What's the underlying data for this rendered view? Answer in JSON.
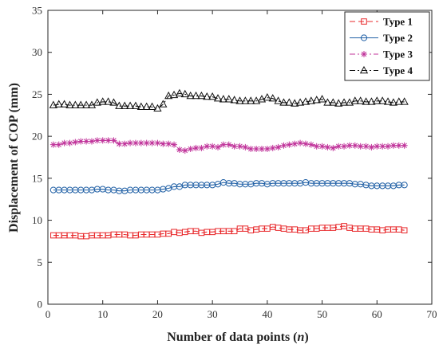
{
  "chart_data": {
    "type": "line",
    "title": "",
    "xlabel": "Number of data points (",
    "xlabel_var": "n",
    "xlabel_suffix": ")",
    "ylabel": "Displacement of COP (mm)",
    "xlim": [
      0,
      70
    ],
    "ylim": [
      0,
      35
    ],
    "xticks": [
      0,
      10,
      20,
      30,
      40,
      50,
      60,
      70
    ],
    "yticks": [
      0,
      5,
      10,
      15,
      20,
      25,
      30,
      35
    ],
    "grid": false,
    "legend_position": "top-right",
    "x": [
      1,
      2,
      3,
      4,
      5,
      6,
      7,
      8,
      9,
      10,
      11,
      12,
      13,
      14,
      15,
      16,
      17,
      18,
      19,
      20,
      21,
      22,
      23,
      24,
      25,
      26,
      27,
      28,
      29,
      30,
      31,
      32,
      33,
      34,
      35,
      36,
      37,
      38,
      39,
      40,
      41,
      42,
      43,
      44,
      45,
      46,
      47,
      48,
      49,
      50,
      51,
      52,
      53,
      54,
      55,
      56,
      57,
      58,
      59,
      60,
      61,
      62,
      63,
      64,
      65
    ],
    "series": [
      {
        "name": "Type 1",
        "color": "#e8282b",
        "dash": "7,4",
        "marker": "square",
        "values": [
          8.2,
          8.2,
          8.2,
          8.2,
          8.2,
          8.1,
          8.1,
          8.2,
          8.2,
          8.2,
          8.2,
          8.3,
          8.3,
          8.3,
          8.2,
          8.2,
          8.3,
          8.3,
          8.3,
          8.3,
          8.4,
          8.4,
          8.6,
          8.5,
          8.6,
          8.7,
          8.7,
          8.5,
          8.6,
          8.6,
          8.7,
          8.7,
          8.7,
          8.7,
          9.0,
          9.0,
          8.8,
          8.9,
          9.0,
          9.0,
          9.2,
          9.1,
          9.0,
          8.9,
          8.9,
          8.8,
          8.8,
          9.0,
          9.0,
          9.1,
          9.1,
          9.1,
          9.2,
          9.3,
          9.1,
          9.0,
          9.0,
          9.0,
          8.9,
          8.9,
          8.8,
          8.9,
          8.9,
          8.9,
          8.8
        ]
      },
      {
        "name": "Type 2",
        "color": "#1f5fa5",
        "dash": "",
        "marker": "circle",
        "values": [
          13.6,
          13.6,
          13.6,
          13.6,
          13.6,
          13.6,
          13.6,
          13.6,
          13.7,
          13.7,
          13.6,
          13.6,
          13.5,
          13.5,
          13.6,
          13.6,
          13.6,
          13.6,
          13.6,
          13.6,
          13.7,
          13.8,
          14.0,
          14.0,
          14.2,
          14.2,
          14.2,
          14.2,
          14.2,
          14.2,
          14.3,
          14.5,
          14.4,
          14.4,
          14.3,
          14.3,
          14.3,
          14.4,
          14.4,
          14.3,
          14.4,
          14.4,
          14.4,
          14.4,
          14.4,
          14.4,
          14.5,
          14.4,
          14.4,
          14.4,
          14.4,
          14.4,
          14.4,
          14.4,
          14.4,
          14.3,
          14.3,
          14.2,
          14.1,
          14.1,
          14.1,
          14.1,
          14.1,
          14.2,
          14.2
        ]
      },
      {
        "name": "Type 3",
        "color": "#c0339a",
        "dash": "7,3,2,3",
        "marker": "star",
        "values": [
          19.0,
          19.0,
          19.2,
          19.2,
          19.3,
          19.4,
          19.4,
          19.4,
          19.5,
          19.5,
          19.5,
          19.5,
          19.1,
          19.1,
          19.2,
          19.2,
          19.2,
          19.2,
          19.2,
          19.2,
          19.1,
          19.1,
          19.0,
          18.4,
          18.3,
          18.5,
          18.6,
          18.6,
          18.8,
          18.8,
          18.7,
          19.0,
          19.0,
          18.8,
          18.8,
          18.7,
          18.5,
          18.5,
          18.5,
          18.5,
          18.6,
          18.7,
          18.9,
          19.0,
          19.1,
          19.2,
          19.1,
          19.0,
          18.8,
          18.8,
          18.7,
          18.6,
          18.8,
          18.8,
          18.9,
          18.9,
          18.8,
          18.8,
          18.7,
          18.8,
          18.8,
          18.8,
          18.9,
          18.9,
          18.9
        ]
      },
      {
        "name": "Type 4",
        "color": "#111111",
        "dash": "7,3,2,3",
        "marker": "triangle",
        "values": [
          23.7,
          23.8,
          23.8,
          23.7,
          23.7,
          23.7,
          23.7,
          23.7,
          24.0,
          24.1,
          24.1,
          24.0,
          23.6,
          23.6,
          23.6,
          23.6,
          23.5,
          23.5,
          23.5,
          23.3,
          23.8,
          24.8,
          24.9,
          25.1,
          25.0,
          24.8,
          24.8,
          24.8,
          24.7,
          24.7,
          24.5,
          24.4,
          24.4,
          24.3,
          24.2,
          24.2,
          24.2,
          24.2,
          24.4,
          24.6,
          24.5,
          24.2,
          24.0,
          24.0,
          23.9,
          24.0,
          24.1,
          24.2,
          24.3,
          24.4,
          24.0,
          24.0,
          23.9,
          24.0,
          24.0,
          24.2,
          24.2,
          24.1,
          24.1,
          24.2,
          24.2,
          24.1,
          24.0,
          24.1,
          24.1
        ]
      }
    ]
  }
}
